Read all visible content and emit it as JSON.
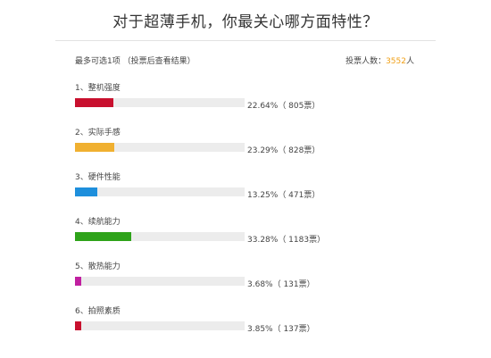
{
  "title": "对于超薄手机，你最关心哪方面特性？",
  "hint": "最多可选1项 （投票后查看结果）",
  "voters": {
    "label": "投票人数：",
    "count": "3552",
    "unit": "人"
  },
  "options": [
    {
      "label": "1、整机强度",
      "result": "22.64%（ 805票）",
      "percent": 22.64,
      "color": "#c8102e"
    },
    {
      "label": "2、实际手感",
      "result": "23.29%（ 828票）",
      "percent": 23.29,
      "color": "#f0b030"
    },
    {
      "label": "3、硬件性能",
      "result": "13.25%（ 471票）",
      "percent": 13.25,
      "color": "#1e8fdc"
    },
    {
      "label": "4、续航能力",
      "result": "33.28%（ 1183票）",
      "percent": 33.28,
      "color": "#2ea31a"
    },
    {
      "label": "5、散热能力",
      "result": "3.68%（ 131票）",
      "percent": 3.68,
      "color": "#c020a0"
    },
    {
      "label": "6、拍照素质",
      "result": "3.85%（ 137票）",
      "percent": 3.85,
      "color": "#c8102e"
    }
  ]
}
